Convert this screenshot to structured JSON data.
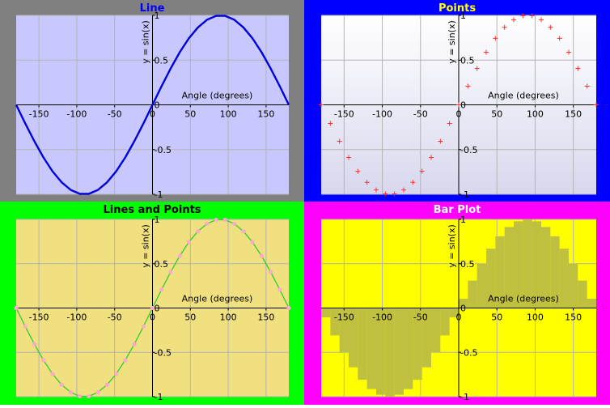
{
  "chart_data": [
    {
      "type": "line",
      "title": "Line",
      "xlabel": "Angle (degrees)",
      "ylabel": "y = sin(x)",
      "xlim": [
        -180,
        180
      ],
      "ylim": [
        -1,
        1
      ],
      "xticks": [
        -150,
        -100,
        -50,
        0,
        50,
        100,
        150
      ],
      "yticks": [
        -1,
        -0.5,
        0,
        0.5,
        1
      ],
      "ytick_labels": [
        "-1",
        "-0.5",
        "0",
        "0.5",
        "1"
      ],
      "grid": true,
      "function": "sin(x)",
      "x": [
        -180,
        -168,
        -156,
        -144,
        -132,
        -120,
        -108,
        -96,
        -84,
        -72,
        -60,
        -48,
        -36,
        -24,
        -12,
        0,
        12,
        24,
        36,
        48,
        60,
        72,
        84,
        96,
        108,
        120,
        132,
        144,
        156,
        168,
        180
      ],
      "y": [
        0,
        -0.208,
        -0.407,
        -0.588,
        -0.743,
        -0.866,
        -0.951,
        -0.995,
        -0.995,
        -0.951,
        -0.866,
        -0.743,
        -0.588,
        -0.407,
        -0.208,
        0,
        0.208,
        0.407,
        0.588,
        0.743,
        0.866,
        0.951,
        0.995,
        0.995,
        0.951,
        0.866,
        0.743,
        0.588,
        0.407,
        0.208,
        0
      ],
      "colors": {
        "background": "#808080",
        "plot": "#c8c8ff",
        "series": "#0000dd",
        "title": "#0000ff"
      }
    },
    {
      "type": "scatter",
      "title": "Points",
      "xlabel": "Angle (degrees)",
      "ylabel": "y = sin(x)",
      "xlim": [
        -180,
        180
      ],
      "ylim": [
        -1,
        1
      ],
      "xticks": [
        -150,
        -100,
        -50,
        0,
        50,
        100,
        150
      ],
      "yticks": [
        -1,
        -0.5,
        0,
        0.5,
        1
      ],
      "ytick_labels": [
        "-1",
        "-0.5",
        "0",
        "0.5",
        "1"
      ],
      "grid": true,
      "marker": "plus",
      "x": [
        -180,
        -168,
        -156,
        -144,
        -132,
        -120,
        -108,
        -96,
        -84,
        -72,
        -60,
        -48,
        -36,
        -24,
        -12,
        0,
        12,
        24,
        36,
        48,
        60,
        72,
        84,
        96,
        108,
        120,
        132,
        144,
        156,
        168,
        180
      ],
      "y": [
        0,
        -0.208,
        -0.407,
        -0.588,
        -0.743,
        -0.866,
        -0.951,
        -0.995,
        -0.995,
        -0.951,
        -0.866,
        -0.743,
        -0.588,
        -0.407,
        -0.208,
        0,
        0.208,
        0.407,
        0.588,
        0.743,
        0.866,
        0.951,
        0.995,
        0.995,
        0.951,
        0.866,
        0.743,
        0.588,
        0.407,
        0.208,
        0
      ],
      "colors": {
        "background": "#0000ff",
        "plot_top": "#ffffff",
        "plot_bottom": "#d8d8ee",
        "series": "#ff3030",
        "title": "#ffff00"
      }
    },
    {
      "type": "line",
      "title": "Lines and Points",
      "xlabel": "Angle (degrees)",
      "ylabel": "y = sin(x)",
      "xlim": [
        -180,
        180
      ],
      "ylim": [
        -1,
        1
      ],
      "xticks": [
        -150,
        -100,
        -50,
        0,
        50,
        100,
        150
      ],
      "yticks": [
        -1,
        -0.5,
        0,
        0.5,
        1
      ],
      "ytick_labels": [
        "-1",
        "-0.5",
        "0",
        "0.5",
        "1"
      ],
      "grid": true,
      "marker": "dot",
      "x": [
        -180,
        -168,
        -156,
        -144,
        -132,
        -120,
        -108,
        -96,
        -84,
        -72,
        -60,
        -48,
        -36,
        -24,
        -12,
        0,
        12,
        24,
        36,
        48,
        60,
        72,
        84,
        96,
        108,
        120,
        132,
        144,
        156,
        168,
        180
      ],
      "y": [
        0,
        -0.208,
        -0.407,
        -0.588,
        -0.743,
        -0.866,
        -0.951,
        -0.995,
        -0.995,
        -0.951,
        -0.866,
        -0.743,
        -0.588,
        -0.407,
        -0.208,
        0,
        0.208,
        0.407,
        0.588,
        0.743,
        0.866,
        0.951,
        0.995,
        0.995,
        0.951,
        0.866,
        0.743,
        0.588,
        0.407,
        0.208,
        0
      ],
      "colors": {
        "background": "#00ff00",
        "plot": "#f0e080",
        "series": "#33cc33",
        "marker": "#ffaacc",
        "title": "#000000"
      }
    },
    {
      "type": "bar",
      "title": "Bar Plot",
      "xlabel": "Angle (degrees)",
      "ylabel": "y = sin(x)",
      "xlim": [
        -180,
        180
      ],
      "ylim": [
        -1,
        1
      ],
      "xticks": [
        -150,
        -100,
        -50,
        0,
        50,
        100,
        150
      ],
      "yticks": [
        -1,
        -0.5,
        0,
        0.5,
        1
      ],
      "ytick_labels": [
        "-1",
        "-0.5",
        "0",
        "0.5",
        "1"
      ],
      "grid": true,
      "bar_width": 12,
      "x": [
        -174,
        -162,
        -150,
        -138,
        -126,
        -114,
        -102,
        -90,
        -78,
        -66,
        -54,
        -42,
        -30,
        -18,
        -6,
        6,
        18,
        30,
        42,
        54,
        66,
        78,
        90,
        102,
        114,
        126,
        138,
        150,
        162,
        174
      ],
      "y": [
        -0.105,
        -0.309,
        -0.5,
        -0.669,
        -0.809,
        -0.914,
        -0.978,
        -1,
        -0.978,
        -0.914,
        -0.809,
        -0.669,
        -0.5,
        -0.309,
        -0.105,
        0.105,
        0.309,
        0.5,
        0.669,
        0.809,
        0.914,
        0.978,
        1,
        0.978,
        0.914,
        0.809,
        0.669,
        0.5,
        0.309,
        0.105
      ],
      "colors": {
        "background": "#ff00ff",
        "plot": "#ffff00",
        "series": "#c0c040",
        "title": "#ffffff"
      }
    }
  ]
}
